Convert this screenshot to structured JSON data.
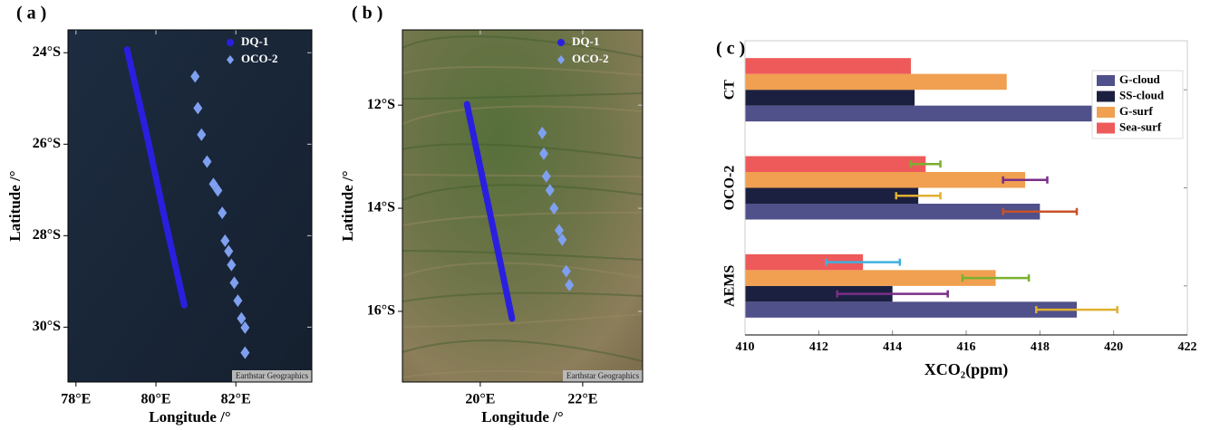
{
  "chart_data": [
    {
      "type": "scatter",
      "panel_label": "( a )",
      "xlabel": "Longitude /°",
      "ylabel": "Latitude /°",
      "attribution": "Earthstar Geographics",
      "xlim": [
        77.8,
        83.9
      ],
      "ylim": [
        -31.2,
        -23.5
      ],
      "xticks": [
        {
          "value": 78,
          "label": "78°E"
        },
        {
          "value": 80,
          "label": "80°E"
        },
        {
          "value": 82,
          "label": "82°E"
        }
      ],
      "yticks": [
        {
          "value": -24,
          "label": "24°S"
        },
        {
          "value": -26,
          "label": "26°S"
        },
        {
          "value": -28,
          "label": "28°S"
        },
        {
          "value": -30,
          "label": "30°S"
        }
      ],
      "series": [
        {
          "name": "DQ-1",
          "color": "#2a1fe0",
          "marker": "circle",
          "x": [
            79.28,
            79.77,
            80.23,
            80.71
          ],
          "y": [
            -23.93,
            -25.79,
            -27.66,
            -29.52
          ]
        },
        {
          "name": "OCO-2",
          "color": "#7fa0f0",
          "marker": "diamond",
          "x": [
            80.98,
            81.05,
            81.14,
            81.28,
            81.44,
            81.55,
            81.66,
            81.73,
            81.82,
            81.89,
            81.96,
            82.05,
            82.14,
            82.23,
            82.23
          ],
          "y": [
            -24.52,
            -25.21,
            -25.79,
            -26.38,
            -26.87,
            -27.01,
            -27.5,
            -28.11,
            -28.34,
            -28.64,
            -29.03,
            -29.42,
            -29.81,
            -30.01,
            -30.56
          ]
        }
      ]
    },
    {
      "type": "scatter",
      "panel_label": "( b )",
      "xlabel": "Longitude /°",
      "ylabel": "Latitude /°",
      "attribution": "Earthstar Geographics",
      "xlim": [
        18.48,
        23.17
      ],
      "ylim": [
        -17.37,
        -10.54
      ],
      "xticks": [
        {
          "value": 20,
          "label": "20°E"
        },
        {
          "value": 22,
          "label": "22°E"
        }
      ],
      "yticks": [
        {
          "value": -12,
          "label": "12°S"
        },
        {
          "value": -14,
          "label": "14°S"
        },
        {
          "value": -16,
          "label": "16°S"
        }
      ],
      "series": [
        {
          "name": "DQ-1",
          "color": "#2a1fe0",
          "marker": "circle",
          "x": [
            19.74,
            20.18,
            20.62
          ],
          "y": [
            -11.98,
            -14.05,
            -16.14
          ]
        },
        {
          "name": "OCO-2",
          "color": "#7fa0f0",
          "marker": "diamond",
          "x": [
            21.21,
            21.24,
            21.29,
            21.36,
            21.44,
            21.54,
            21.6,
            21.68,
            21.74
          ],
          "y": [
            -12.54,
            -12.94,
            -13.38,
            -13.65,
            -14.0,
            -14.43,
            -14.61,
            -15.22,
            -15.49
          ]
        }
      ]
    },
    {
      "type": "barh",
      "panel_label": "( c )",
      "xlabel": "XCO₂(ppm)",
      "categories": [
        "CT",
        "OCO-2",
        "AEMS"
      ],
      "xlim": [
        410,
        422
      ],
      "xticks": [
        410,
        412,
        414,
        416,
        418,
        420,
        422
      ],
      "series": [
        {
          "name": "G-cloud",
          "color": "#50508a",
          "values": [
            419.5,
            418.0,
            419.0
          ],
          "errors": [
            null,
            1.0,
            1.1
          ],
          "error_colors": [
            null,
            "#c8522a",
            "#e0b030"
          ]
        },
        {
          "name": "SS-cloud",
          "color": "#1c2040",
          "values": [
            414.6,
            414.7,
            414.0
          ],
          "errors": [
            null,
            0.6,
            1.5
          ],
          "error_colors": [
            null,
            "#e0b030",
            "#7a2e86"
          ]
        },
        {
          "name": "G-surf",
          "color": "#f0a050",
          "values": [
            417.1,
            417.6,
            416.8
          ],
          "errors": [
            null,
            0.6,
            0.9
          ],
          "error_colors": [
            null,
            "#7a2e86",
            "#7ab030"
          ]
        },
        {
          "name": "Sea-surf",
          "color": "#ee5a5a",
          "values": [
            414.5,
            414.9,
            413.2
          ],
          "errors": [
            null,
            0.4,
            1.0
          ],
          "error_colors": [
            null,
            "#7ab030",
            "#40b0e0"
          ]
        }
      ]
    }
  ]
}
